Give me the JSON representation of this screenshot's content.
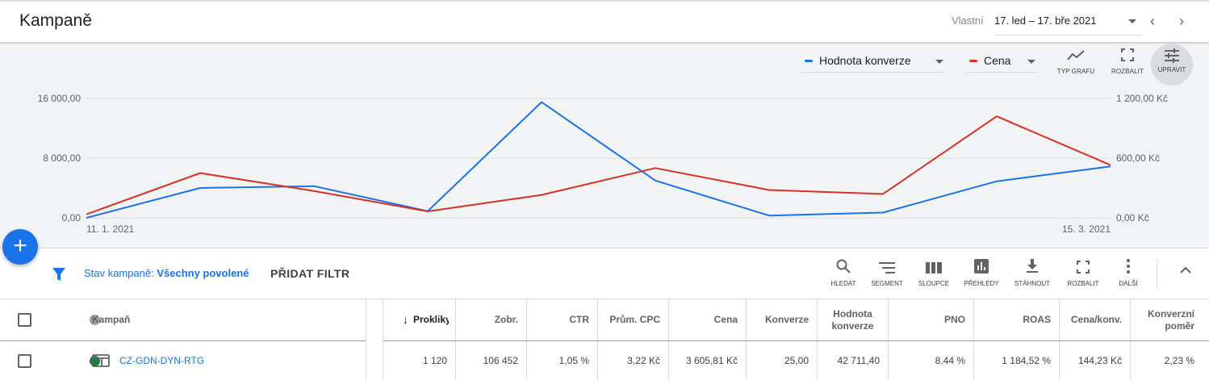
{
  "header": {
    "title": "Kampaně",
    "date_type": "Vlastní",
    "date_range": "17. led – 17. bře 2021",
    "prev_icon": "chevron-left-icon",
    "next_icon": "chevron-right-icon"
  },
  "chart_controls": {
    "metric1": {
      "label": "Hodnota konverze",
      "color": "#1a73e8"
    },
    "metric2": {
      "label": "Cena",
      "color": "#d93025"
    },
    "chart_type_label": "TYP GRAFU",
    "expand_label": "ROZBALIT",
    "adjust_label": "UPRAVIT"
  },
  "chart_data": {
    "type": "line",
    "x_start_label": "11. 1. 2021",
    "x_end_label": "15. 3. 2021",
    "y_left_ticks": [
      "0,00",
      "8 000,00",
      "16 000,00"
    ],
    "y_right_ticks": [
      "0,00 Kč",
      "600,00 Kč",
      "1 200,00 Kč"
    ],
    "y_left_range": [
      0,
      16000
    ],
    "y_right_range": [
      0,
      1200
    ],
    "points": 10,
    "series": [
      {
        "name": "Hodnota konverze",
        "axis": "left",
        "color": "#1a73e8",
        "values": [
          0,
          4000,
          4250,
          900,
          15500,
          5000,
          300,
          700,
          4900,
          6900
        ]
      },
      {
        "name": "Cena",
        "axis": "right",
        "color": "#d93025",
        "values": [
          35,
          450,
          270,
          65,
          230,
          500,
          280,
          240,
          1020,
          530
        ]
      }
    ],
    "grid": true
  },
  "fab": {
    "icon": "plus-icon"
  },
  "filter": {
    "label": "Stav kampaně:",
    "value": "Všechny povolené",
    "add_filter": "PŘIDAT FILTR"
  },
  "table_tools": {
    "search": "HLEDAT",
    "segment": "SEGMENT",
    "columns": "SLOUPCE",
    "reports": "PŘEHLEDY",
    "download": "STÁHNOUT",
    "expand": "ROZBALIT",
    "more": "DALŠÍ"
  },
  "table": {
    "headers": {
      "campaign": "Kampaň",
      "clicks": "Prokliky",
      "impressions": "Zobr.",
      "ctr": "CTR",
      "avg_cpc": "Prům. CPC",
      "cost": "Cena",
      "conversions": "Konverze",
      "conv_value_line1": "Hodnota",
      "conv_value_line2": "konverze",
      "pno": "PNO",
      "roas": "ROAS",
      "cost_per_conv": "Cena/konv.",
      "conv_rate_line1": "Konverzní",
      "conv_rate_line2": "poměr"
    },
    "rows": [
      {
        "status_color": "#188038",
        "campaign": "CZ-GDN-DYN-RTG",
        "clicks": "1 120",
        "impressions": "106 452",
        "ctr": "1,05 %",
        "avg_cpc": "3,22 Kč",
        "cost": "3 605,81 Kč",
        "conversions": "25,00",
        "conv_value": "42 711,40",
        "pno": "8,44 %",
        "roas": "1 184,52 %",
        "cost_per_conv": "144,23 Kč",
        "conv_rate": "2,23 %"
      }
    ]
  }
}
